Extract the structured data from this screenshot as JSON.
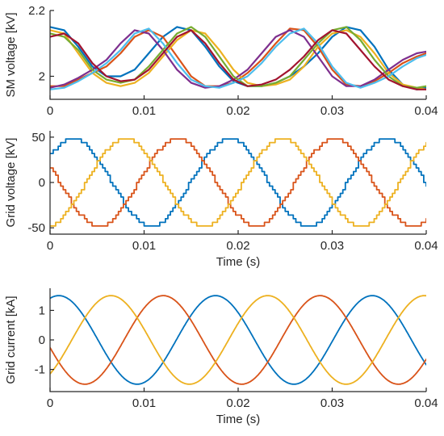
{
  "chart_data": [
    {
      "type": "line",
      "ylabel": "SM voltage [kV]",
      "xlabel": "",
      "xlim": [
        0,
        0.04
      ],
      "ylim": [
        1.93,
        2.2
      ],
      "xticks": [
        0,
        0.01,
        0.02,
        0.03,
        0.04
      ],
      "xtick_labels": [
        "0",
        "0.01",
        "0.02",
        "0.03",
        "0.04"
      ],
      "yticks": [
        2,
        2.2
      ],
      "ytick_labels": [
        "2",
        "2.2"
      ],
      "grid": false,
      "style": "many overlapping submodule capacitor voltage traces (two groups, phase-shifted)",
      "series": [
        {
          "color": "#0072BD",
          "x": [
            0,
            0.0015,
            0.003,
            0.0045,
            0.006,
            0.0075,
            0.009,
            0.0105,
            0.012,
            0.0135,
            0.015,
            0.0165,
            0.018,
            0.0195,
            0.021,
            0.0225,
            0.024,
            0.0255,
            0.027,
            0.0285,
            0.03,
            0.0315,
            0.033,
            0.0345,
            0.036,
            0.0375,
            0.039,
            0.04
          ],
          "values": [
            2.15,
            2.14,
            2.09,
            2.03,
            2.0,
            2.0,
            2.02,
            2.07,
            2.12,
            2.15,
            2.14,
            2.09,
            2.03,
            1.985,
            1.97,
            1.97,
            1.98,
            2.0,
            2.03,
            2.07,
            2.12,
            2.15,
            2.14,
            2.09,
            2.02,
            1.975,
            1.96,
            1.965
          ]
        },
        {
          "color": "#D95319",
          "x": [
            0,
            0.0015,
            0.003,
            0.0045,
            0.006,
            0.0075,
            0.009,
            0.0105,
            0.012,
            0.0135,
            0.015,
            0.0165,
            0.018,
            0.0195,
            0.021,
            0.0225,
            0.024,
            0.0255,
            0.027,
            0.0285,
            0.03,
            0.0315,
            0.033,
            0.0345,
            0.036,
            0.0375,
            0.039,
            0.04
          ],
          "values": [
            1.97,
            1.97,
            1.99,
            2.01,
            2.03,
            2.07,
            2.12,
            2.14,
            2.12,
            2.06,
            2.0,
            1.97,
            1.97,
            1.98,
            2.01,
            2.05,
            2.1,
            2.145,
            2.14,
            2.09,
            2.02,
            1.975,
            1.97,
            1.985,
            2.01,
            2.04,
            2.06,
            2.07
          ]
        },
        {
          "color": "#EDB120",
          "x": [
            0,
            0.0015,
            0.003,
            0.0045,
            0.006,
            0.0075,
            0.009,
            0.0105,
            0.012,
            0.0135,
            0.015,
            0.0165,
            0.018,
            0.0195,
            0.021,
            0.0225,
            0.024,
            0.0255,
            0.027,
            0.0285,
            0.03,
            0.0315,
            0.033,
            0.0345,
            0.036,
            0.0375,
            0.039,
            0.04
          ],
          "values": [
            2.14,
            2.13,
            2.07,
            2.01,
            1.98,
            1.97,
            1.98,
            2.01,
            2.06,
            2.11,
            2.14,
            2.13,
            2.08,
            2.02,
            1.98,
            1.97,
            1.975,
            1.99,
            2.03,
            2.09,
            2.13,
            2.14,
            2.12,
            2.07,
            2.01,
            1.975,
            1.965,
            1.96
          ]
        },
        {
          "color": "#7E2F8E",
          "x": [
            0,
            0.0015,
            0.003,
            0.0045,
            0.006,
            0.0075,
            0.009,
            0.0105,
            0.012,
            0.0135,
            0.015,
            0.0165,
            0.018,
            0.0195,
            0.021,
            0.0225,
            0.024,
            0.0255,
            0.027,
            0.0285,
            0.03,
            0.0315,
            0.033,
            0.0345,
            0.036,
            0.0375,
            0.039,
            0.04
          ],
          "values": [
            1.965,
            1.975,
            1.995,
            2.02,
            2.05,
            2.1,
            2.14,
            2.13,
            2.08,
            2.02,
            1.98,
            1.965,
            1.97,
            1.99,
            2.02,
            2.07,
            2.12,
            2.14,
            2.12,
            2.06,
            2.0,
            1.97,
            1.97,
            1.99,
            2.02,
            2.05,
            2.07,
            2.075
          ]
        },
        {
          "color": "#77AC30",
          "x": [
            0,
            0.0015,
            0.003,
            0.0045,
            0.006,
            0.0075,
            0.009,
            0.0105,
            0.012,
            0.0135,
            0.015,
            0.0165,
            0.018,
            0.0195,
            0.021,
            0.0225,
            0.024,
            0.0255,
            0.027,
            0.0285,
            0.03,
            0.0315,
            0.033,
            0.0345,
            0.036,
            0.0375,
            0.039,
            0.04
          ],
          "values": [
            2.13,
            2.12,
            2.08,
            2.02,
            1.99,
            1.98,
            1.99,
            2.03,
            2.08,
            2.13,
            2.15,
            2.12,
            2.06,
            2.0,
            1.97,
            1.97,
            1.98,
            2.0,
            2.05,
            2.1,
            2.14,
            2.15,
            2.11,
            2.05,
            2.0,
            1.97,
            1.965,
            1.97
          ]
        },
        {
          "color": "#4DBEEE",
          "x": [
            0,
            0.0015,
            0.003,
            0.0045,
            0.006,
            0.0075,
            0.009,
            0.0105,
            0.012,
            0.0135,
            0.015,
            0.0165,
            0.018,
            0.0195,
            0.021,
            0.0225,
            0.024,
            0.0255,
            0.027,
            0.0285,
            0.03,
            0.0315,
            0.033,
            0.0345,
            0.036,
            0.0375,
            0.039,
            0.04
          ],
          "values": [
            1.96,
            1.965,
            1.985,
            2.01,
            2.04,
            2.08,
            2.13,
            2.145,
            2.1,
            2.04,
            1.99,
            1.97,
            1.965,
            1.98,
            2.0,
            2.04,
            2.09,
            2.13,
            2.145,
            2.1,
            2.03,
            1.98,
            1.965,
            1.98,
            2.0,
            2.03,
            2.055,
            2.065
          ]
        },
        {
          "color": "#A2142F",
          "x": [
            0,
            0.0015,
            0.003,
            0.0045,
            0.006,
            0.0075,
            0.009,
            0.0105,
            0.012,
            0.0135,
            0.015,
            0.0165,
            0.018,
            0.0195,
            0.021,
            0.0225,
            0.024,
            0.0255,
            0.027,
            0.0285,
            0.03,
            0.0315,
            0.033,
            0.0345,
            0.036,
            0.0375,
            0.039,
            0.04
          ],
          "values": [
            2.12,
            2.13,
            2.1,
            2.04,
            2.0,
            1.985,
            1.99,
            2.02,
            2.07,
            2.12,
            2.14,
            2.1,
            2.04,
            1.99,
            1.97,
            1.975,
            1.99,
            2.02,
            2.06,
            2.11,
            2.14,
            2.13,
            2.08,
            2.03,
            1.99,
            1.97,
            1.96,
            1.96
          ]
        }
      ]
    },
    {
      "type": "line",
      "ylabel": "Grid voltage [kV]",
      "xlabel": "Time (s)",
      "xlim": [
        0,
        0.04
      ],
      "ylim": [
        -57,
        57
      ],
      "xticks": [
        0,
        0.01,
        0.02,
        0.03,
        0.04
      ],
      "xtick_labels": [
        "0",
        "0.01",
        "0.02",
        "0.03",
        "0.04"
      ],
      "yticks": [
        -50,
        0,
        50
      ],
      "ytick_labels": [
        "-50",
        "0",
        "50"
      ],
      "grid": false,
      "style": "staircase (multilevel) three-phase sinusoids",
      "series": [
        {
          "color": "#0072BD",
          "amplitude": 48,
          "frequency_hz": 60,
          "phase_deg": 40,
          "steps_per_cycle": 60
        },
        {
          "color": "#D95319",
          "amplitude": 48,
          "frequency_hz": 60,
          "phase_deg": 160,
          "steps_per_cycle": 60
        },
        {
          "color": "#EDB120",
          "amplitude": 48,
          "frequency_hz": 60,
          "phase_deg": -80,
          "steps_per_cycle": 60
        }
      ]
    },
    {
      "type": "line",
      "ylabel": "Grid current [kA]",
      "xlabel": "Time (s)",
      "xlim": [
        0,
        0.04
      ],
      "ylim": [
        -1.75,
        1.75
      ],
      "xticks": [
        0,
        0.01,
        0.02,
        0.03,
        0.04
      ],
      "xtick_labels": [
        "0",
        "0.01",
        "0.02",
        "0.03",
        "0.04"
      ],
      "yticks": [
        -1,
        0,
        1
      ],
      "ytick_labels": [
        "-1",
        "0",
        "1"
      ],
      "grid": false,
      "style": "smooth three-phase sinusoids",
      "series": [
        {
          "color": "#0072BD",
          "amplitude": 1.5,
          "frequency_hz": 60,
          "phase_deg": 70
        },
        {
          "color": "#D95319",
          "amplitude": 1.5,
          "frequency_hz": 60,
          "phase_deg": -170
        },
        {
          "color": "#EDB120",
          "amplitude": 1.5,
          "frequency_hz": 60,
          "phase_deg": -50
        }
      ]
    }
  ]
}
